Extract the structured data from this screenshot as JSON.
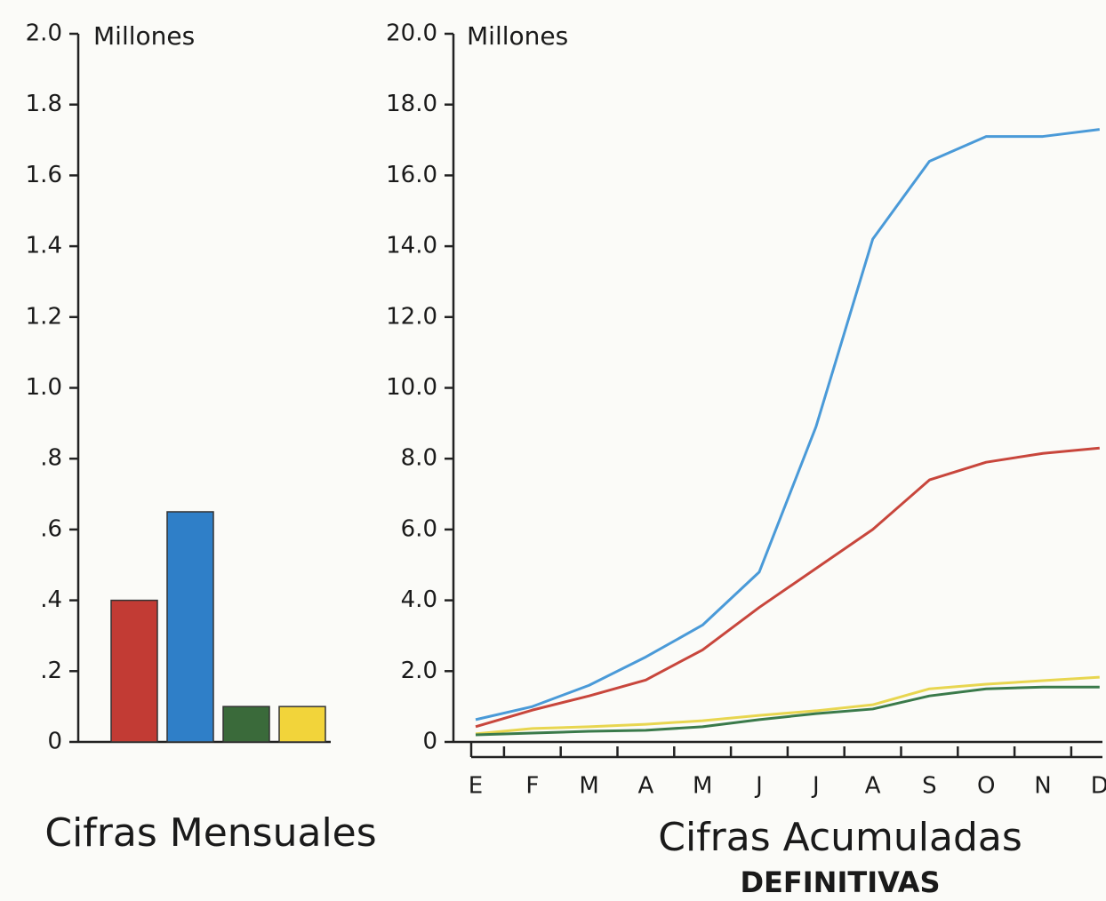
{
  "chart_data": [
    {
      "type": "bar",
      "title": "Cifras Mensuales",
      "unit_label": "Millones",
      "categories": [
        null,
        null,
        null,
        null
      ],
      "values": [
        0.4,
        0.65,
        0.1,
        0.1
      ],
      "colors": [
        "#c23b34",
        "#2f7fc8",
        "#3a6a3a",
        "#f2d43a"
      ],
      "ylim": [
        0,
        2.0
      ],
      "yticks": [
        0,
        {
          "value": 0.2,
          "label": ".2"
        },
        {
          "value": 0.4,
          "label": ".4"
        },
        {
          "value": 0.6,
          "label": ".6"
        },
        {
          "value": 0.8,
          "label": ".8"
        },
        {
          "value": 1.0,
          "label": "1.0"
        },
        1.2,
        1.4,
        1.6,
        1.8,
        {
          "value": 2.0,
          "label": "2.0"
        }
      ]
    },
    {
      "type": "line",
      "title": "Cifras Acumuladas",
      "subtitle": "DEFINITIVAS",
      "unit_label": "Millones",
      "categories": [
        "E",
        "F",
        "M",
        "A",
        "M",
        "J",
        "J",
        "A",
        "S",
        "O",
        "N",
        "D"
      ],
      "series": [
        {
          "color": "#4a9ad8",
          "values": [
            0.63,
            1.0,
            1.6,
            2.4,
            3.3,
            4.8,
            8.9,
            14.2,
            16.4,
            17.1,
            17.1,
            17.3
          ]
        },
        {
          "color": "#c8463c",
          "values": [
            0.43,
            0.9,
            1.3,
            1.75,
            2.6,
            3.8,
            4.9,
            6.0,
            7.4,
            7.9,
            8.15,
            8.3
          ]
        },
        {
          "color": "#e8d650",
          "values": [
            0.23,
            0.38,
            0.43,
            0.5,
            0.6,
            0.75,
            0.88,
            1.05,
            1.5,
            1.63,
            1.73,
            1.83
          ]
        },
        {
          "color": "#3a7a4a",
          "values": [
            0.2,
            0.25,
            0.3,
            0.33,
            0.43,
            0.63,
            0.8,
            0.93,
            1.3,
            1.5,
            1.55,
            1.55
          ]
        }
      ],
      "ylim": [
        0,
        20.0
      ],
      "yticks": [
        0,
        {
          "value": 2.0,
          "label": "2.0"
        },
        {
          "value": 4.0,
          "label": "4.0"
        },
        {
          "value": 6.0,
          "label": "6.0"
        },
        {
          "value": 8.0,
          "label": "8.0"
        },
        {
          "value": 10.0,
          "label": "10.0"
        },
        {
          "value": 12.0,
          "label": "12.0"
        },
        {
          "value": 14.0,
          "label": "14.0"
        },
        {
          "value": 16.0,
          "label": "16.0"
        },
        {
          "value": 18.0,
          "label": "18.0"
        },
        {
          "value": 20.0,
          "label": "20.0"
        }
      ]
    }
  ]
}
